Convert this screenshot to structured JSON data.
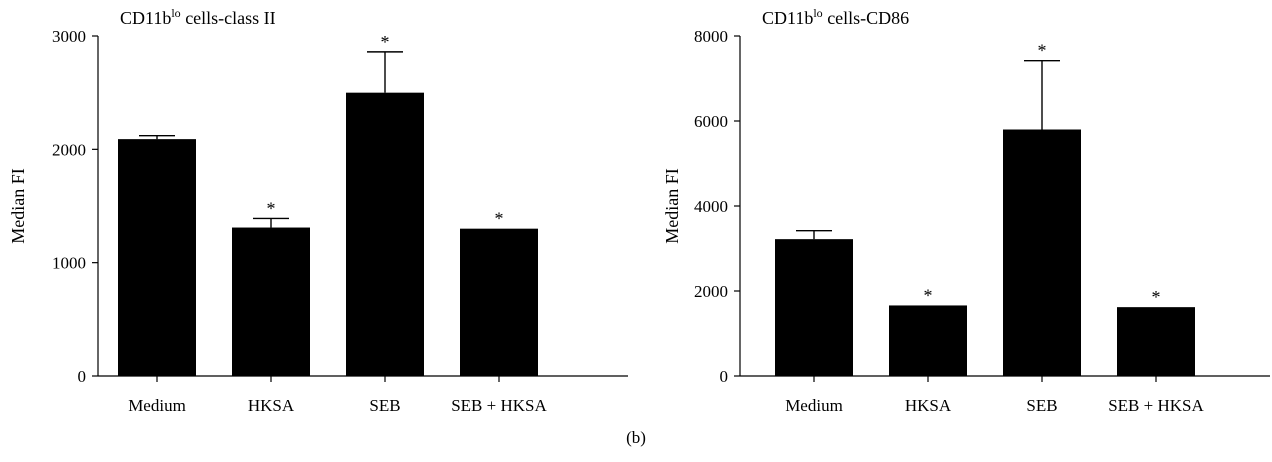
{
  "caption": "(b)",
  "chart_data": [
    {
      "type": "bar",
      "title_main": "CD11b",
      "title_sup": "lo",
      "title_rest": " cells-class II",
      "ylabel": "Median FI",
      "xlabel": "",
      "categories": [
        "Medium",
        "HKSA",
        "SEB",
        "SEB + HKSA"
      ],
      "values": [
        2090,
        1310,
        2500,
        1300
      ],
      "errors": [
        30,
        80,
        360,
        0
      ],
      "significance": [
        "",
        "*",
        "*",
        "*"
      ],
      "ylim": [
        0,
        3000
      ],
      "yticks": [
        0,
        1000,
        2000,
        3000
      ],
      "grid": false,
      "bar_color": "#000000"
    },
    {
      "type": "bar",
      "title_main": "CD11b",
      "title_sup": "lo",
      "title_rest": " cells-CD86",
      "ylabel": "Median FI",
      "xlabel": "",
      "categories": [
        "Medium",
        "HKSA",
        "SEB",
        "SEB + HKSA"
      ],
      "values": [
        3220,
        1660,
        5800,
        1620
      ],
      "errors": [
        200,
        0,
        1620,
        0
      ],
      "significance": [
        "",
        "*",
        "*",
        "*"
      ],
      "ylim": [
        0,
        8000
      ],
      "yticks": [
        0,
        2000,
        4000,
        6000,
        8000
      ],
      "grid": false,
      "bar_color": "#000000"
    }
  ]
}
